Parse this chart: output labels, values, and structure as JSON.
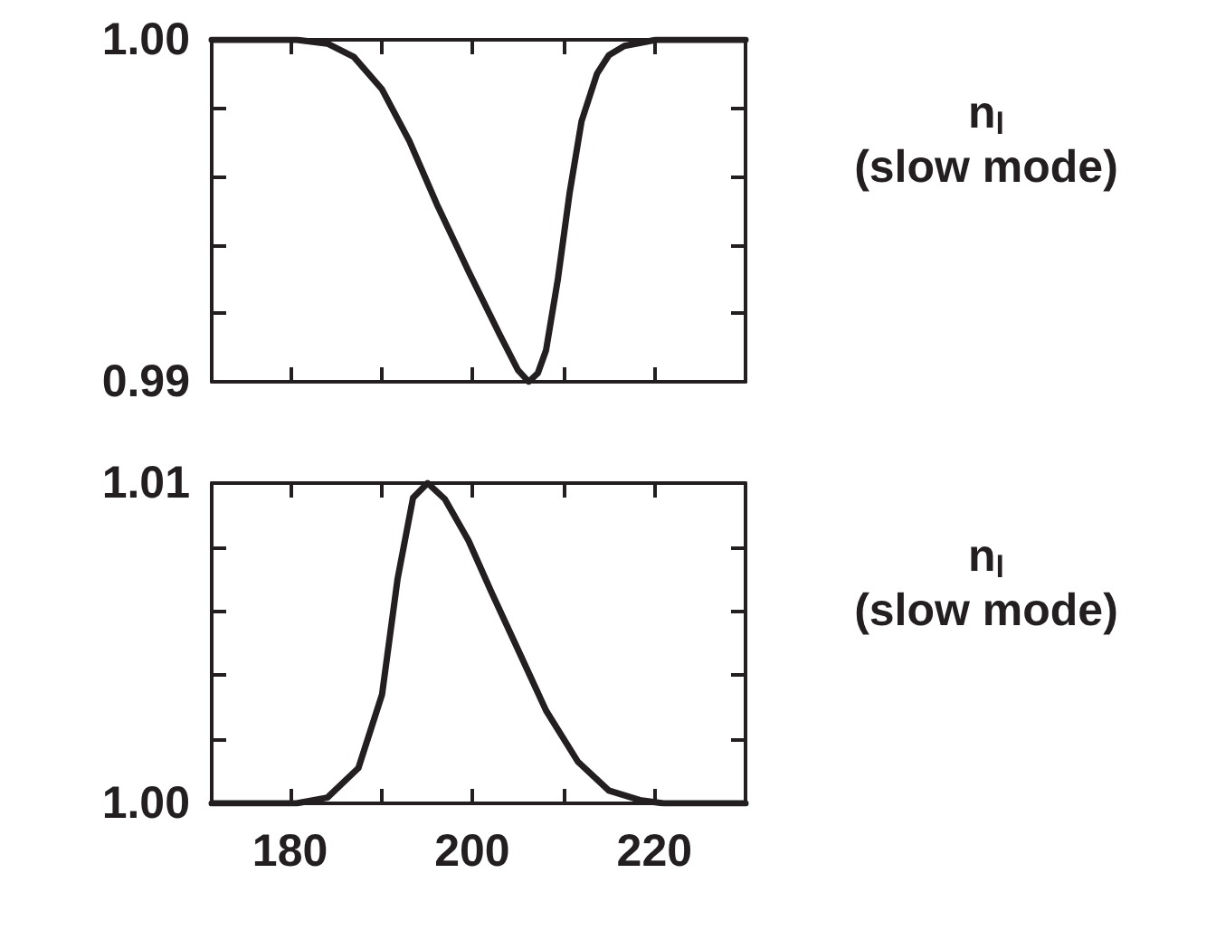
{
  "chart_data": [
    {
      "type": "line",
      "annotations": [
        "n$_{l}$",
        "(slow mode)"
      ],
      "xlim": [
        171.4,
        230
      ],
      "ylim": [
        0.99,
        1.0
      ],
      "xticks": [
        180,
        190,
        200,
        210,
        220
      ],
      "yticks": [
        {
          "value": 0.99,
          "label": "0.99"
        },
        {
          "value": 0.992,
          "label": null
        },
        {
          "value": 0.994,
          "label": null
        },
        {
          "value": 0.996,
          "label": null
        },
        {
          "value": 0.998,
          "label": null
        },
        {
          "value": 1.0,
          "label": "1.00"
        }
      ],
      "tick_labels": "y",
      "grid": false,
      "marker": "none",
      "line_style": "solid",
      "series": [
        {
          "color": "#231f20",
          "x": [
            171.4,
            176,
            180.7,
            184.1,
            187,
            190.1,
            193.1,
            196.1,
            199.6,
            203,
            205,
            206.2,
            207.2,
            208.1,
            209.4,
            210.7,
            212,
            213.7,
            215,
            216.7,
            220.2,
            225,
            230
          ],
          "values": [
            1.0,
            1.0,
            1.0,
            0.99989,
            0.9995,
            0.99855,
            0.99704,
            0.9952,
            0.99323,
            0.99139,
            0.99035,
            0.99,
            0.99025,
            0.99092,
            0.993,
            0.99554,
            0.99762,
            0.99901,
            0.99955,
            0.99982,
            1.0,
            1.0,
            1.0
          ]
        }
      ]
    },
    {
      "type": "line",
      "annotations": [
        "n$_{l}$",
        "(slow mode)"
      ],
      "xlim": [
        171.4,
        230
      ],
      "ylim": [
        1.0,
        1.01
      ],
      "xticks": [
        180,
        {
          "value": 190,
          "label": null
        },
        200,
        {
          "value": 210,
          "label": null
        },
        220
      ],
      "yticks": [
        {
          "value": 1.0,
          "label": "1.00"
        },
        {
          "value": 1.002,
          "label": null
        },
        {
          "value": 1.004,
          "label": null
        },
        {
          "value": 1.006,
          "label": null
        },
        {
          "value": 1.008,
          "label": null
        },
        {
          "value": 1.01,
          "label": "1.01"
        }
      ],
      "grid": false,
      "marker": "none",
      "line_style": "solid",
      "series": [
        {
          "color": "#231f20",
          "x": [
            171.4,
            176,
            180.7,
            184.1,
            187.5,
            190.1,
            191.8,
            193.5,
            195.1,
            197,
            199.6,
            202.1,
            204.7,
            208.1,
            211.6,
            215,
            218.4,
            221,
            225,
            230
          ],
          "values": [
            1.0,
            1.0,
            1.0,
            1.00018,
            1.0011,
            1.0034,
            1.007,
            1.00954,
            1.01,
            1.0095,
            1.0082,
            1.0066,
            1.005,
            1.0029,
            1.0013,
            1.0004,
            1.0001,
            1.0,
            1.0,
            1.0
          ]
        }
      ]
    }
  ]
}
